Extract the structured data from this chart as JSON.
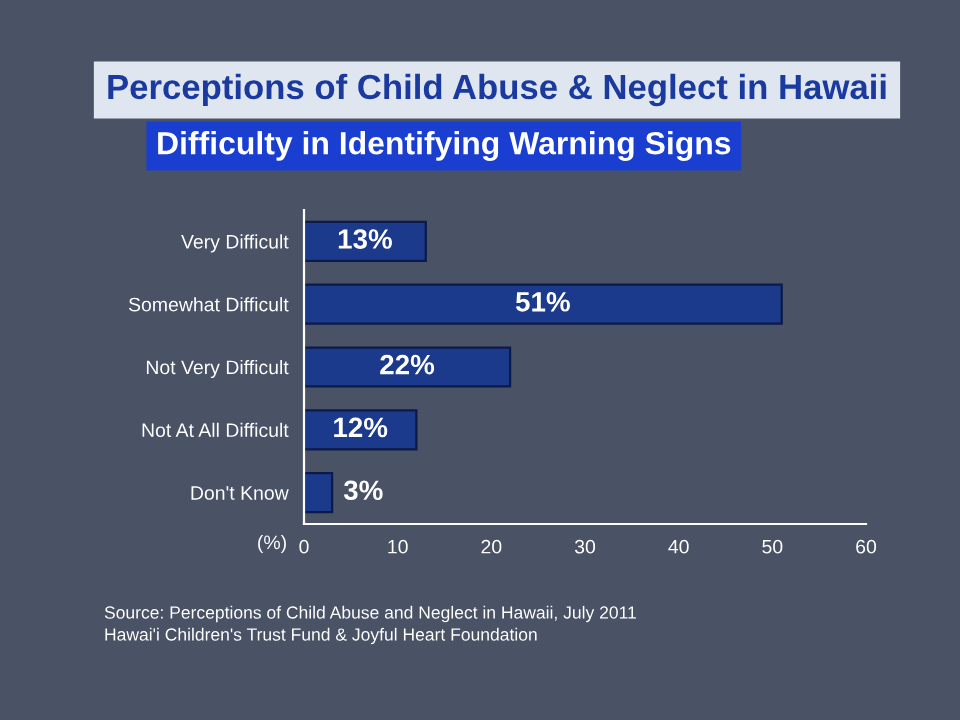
{
  "chart_data": {
    "type": "bar",
    "orientation": "horizontal",
    "title": "Perceptions of Child Abuse & Neglect in Hawaii",
    "subtitle": "Difficulty in Identifying Warning Signs",
    "xlabel": "(%)",
    "categories": [
      "Very Difficult",
      "Somewhat Difficult",
      "Not Very Difficult",
      "Not At All Difficult",
      "Don't Know"
    ],
    "values": [
      13,
      51,
      22,
      12,
      3
    ],
    "value_labels": [
      "13%",
      "51%",
      "22%",
      "12%",
      "3%"
    ],
    "color": "#1c3a8c",
    "xlim": [
      0,
      60
    ],
    "xticks": [
      0,
      10,
      20,
      30,
      40,
      50,
      60
    ],
    "grid": false,
    "annotations": [
      "Source: Perceptions of Child Abuse and Neglect in Hawaii, July 2011",
      "Hawai'i Children's Trust Fund & Joyful Heart Foundation"
    ]
  }
}
